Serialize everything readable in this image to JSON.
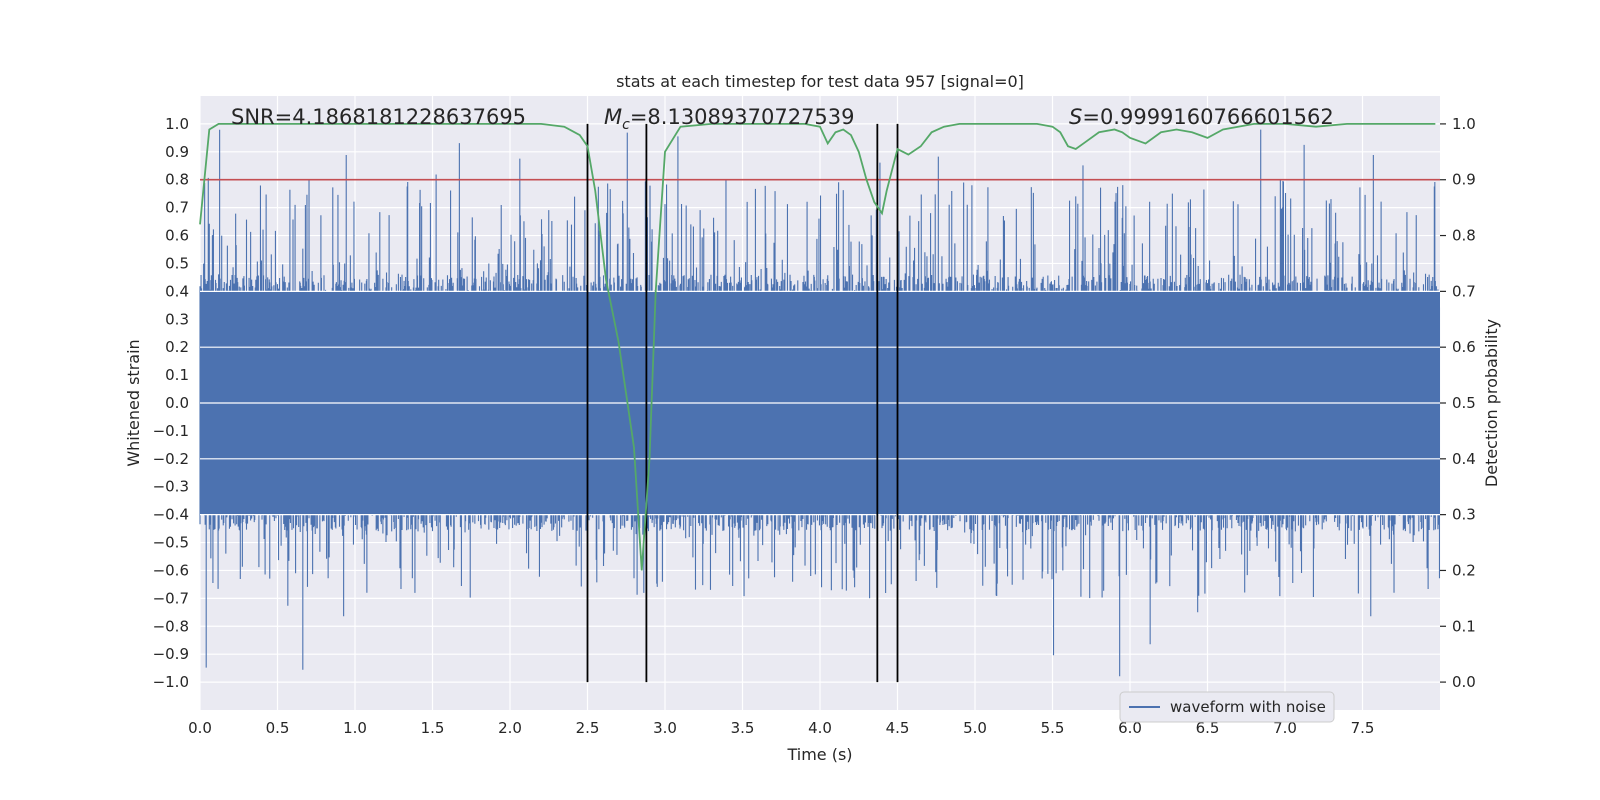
{
  "chart_data": {
    "type": "line",
    "title": "stats at each timestep for test data 957 [signal=0]",
    "xlabel": "Time (s)",
    "ylabel": "Whitened strain",
    "y2label": "Detection probability",
    "xlim": [
      0.0,
      8.0
    ],
    "ylim": [
      -1.1,
      1.1
    ],
    "y2lim": [
      -0.05,
      1.05
    ],
    "x_ticks": [
      "0.0",
      "0.5",
      "1.0",
      "1.5",
      "2.0",
      "2.5",
      "3.0",
      "3.5",
      "4.0",
      "4.5",
      "5.0",
      "5.5",
      "6.0",
      "6.5",
      "7.0",
      "7.5"
    ],
    "y_ticks": [
      "1.0",
      "0.9",
      "0.8",
      "0.7",
      "0.6",
      "0.5",
      "0.4",
      "0.3",
      "0.2",
      "0.1",
      "0.0",
      "−0.1",
      "−0.2",
      "−0.3",
      "−0.4",
      "−0.5",
      "−0.6",
      "−0.7",
      "−0.8",
      "−0.9",
      "−1.0"
    ],
    "y2_ticks": [
      "1.0",
      "0.9",
      "0.8",
      "0.7",
      "0.6",
      "0.5",
      "0.4",
      "0.3",
      "0.2",
      "0.1",
      "0.0"
    ],
    "grid": true,
    "legend_position": "lower-right",
    "annotations": {
      "snr": "SNR=4.1868181228637695",
      "mc_symbol": "M",
      "mc_sub": "c",
      "mc_value": "=8.13089370727539",
      "s_symbol": "S",
      "s_value": "=0.9999160766601562"
    },
    "threshold_y2": 0.9,
    "vertical_lines_x": [
      2.5,
      2.88,
      4.37,
      4.5
    ],
    "series": [
      {
        "name": "waveform with noise",
        "color": "#4c72b0",
        "kind": "noise",
        "duration": 8.0,
        "core_band": [
          -0.4,
          0.4
        ],
        "typical_range": [
          -0.7,
          0.8
        ],
        "max": 0.99,
        "min": -0.99
      },
      {
        "name": "detection probability",
        "color": "#55a868",
        "axis": "y2",
        "x": [
          0.0,
          0.06,
          0.12,
          0.2,
          0.5,
          1.0,
          1.5,
          2.0,
          2.2,
          2.35,
          2.45,
          2.5,
          2.55,
          2.62,
          2.7,
          2.8,
          2.85,
          2.9,
          2.94,
          3.0,
          3.1,
          3.3,
          3.6,
          3.9,
          4.0,
          4.05,
          4.1,
          4.15,
          4.2,
          4.25,
          4.3,
          4.35,
          4.4,
          4.43,
          4.5,
          4.57,
          4.65,
          4.72,
          4.8,
          4.9,
          5.0,
          5.2,
          5.4,
          5.5,
          5.55,
          5.6,
          5.65,
          5.7,
          5.8,
          5.9,
          5.95,
          6.0,
          6.1,
          6.15,
          6.2,
          6.3,
          6.4,
          6.5,
          6.6,
          6.8,
          7.0,
          7.2,
          7.4,
          7.6,
          7.8,
          7.97
        ],
        "y": [
          0.82,
          0.99,
          1.0,
          1.0,
          1.0,
          1.0,
          1.0,
          1.0,
          1.0,
          0.995,
          0.98,
          0.96,
          0.88,
          0.72,
          0.61,
          0.42,
          0.2,
          0.4,
          0.7,
          0.95,
          0.995,
          1.0,
          1.0,
          1.0,
          0.995,
          0.965,
          0.985,
          0.99,
          0.98,
          0.95,
          0.9,
          0.86,
          0.84,
          0.88,
          0.955,
          0.945,
          0.96,
          0.985,
          0.995,
          1.0,
          1.0,
          1.0,
          1.0,
          0.995,
          0.985,
          0.96,
          0.955,
          0.965,
          0.985,
          0.99,
          0.985,
          0.975,
          0.965,
          0.975,
          0.985,
          0.99,
          0.985,
          0.975,
          0.99,
          1.0,
          1.0,
          0.995,
          1.0,
          1.0,
          1.0,
          1.0
        ]
      }
    ]
  }
}
